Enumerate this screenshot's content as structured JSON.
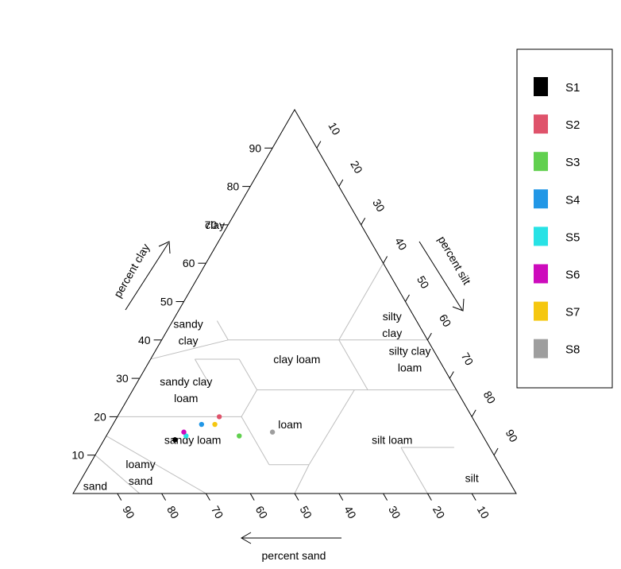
{
  "chart_data": {
    "type": "scatter",
    "subtype": "ternary soil texture triangle",
    "axes": {
      "clay": {
        "label": "percent clay",
        "ticks": [
          10,
          20,
          30,
          40,
          50,
          60,
          70,
          80,
          90
        ],
        "range": [
          0,
          100
        ]
      },
      "silt": {
        "label": "percent silt",
        "ticks": [
          10,
          20,
          30,
          40,
          50,
          60,
          70,
          80,
          90
        ],
        "range": [
          0,
          100
        ]
      },
      "sand": {
        "label": "percent sand",
        "ticks": [
          90,
          80,
          70,
          60,
          50,
          40,
          30,
          20,
          10
        ],
        "range": [
          0,
          100
        ]
      }
    },
    "regions": [
      {
        "name": "clay",
        "lines": [
          "clay"
        ],
        "label_at": {
          "sand": 33,
          "clay": 70
        }
      },
      {
        "name": "sandy-clay",
        "lines": [
          "sandy",
          "clay"
        ],
        "label_at": {
          "sand": 53,
          "clay": 42
        }
      },
      {
        "name": "silty-clay",
        "lines": [
          "silty",
          "clay"
        ],
        "label_at": {
          "sand": 6,
          "clay": 44
        }
      },
      {
        "name": "clay-loam",
        "lines": [
          "clay loam"
        ],
        "label_at": {
          "sand": 32,
          "clay": 35
        }
      },
      {
        "name": "sandy-clay-loam",
        "lines": [
          "sandy clay",
          "loam"
        ],
        "label_at": {
          "sand": 61,
          "clay": 27
        }
      },
      {
        "name": "silty-clay-loam",
        "lines": [
          "silty clay",
          "loam"
        ],
        "label_at": {
          "sand": 6.5,
          "clay": 35
        }
      },
      {
        "name": "loam",
        "lines": [
          "loam"
        ],
        "label_at": {
          "sand": 42,
          "clay": 18
        }
      },
      {
        "name": "silt-loam",
        "lines": [
          "silt loam"
        ],
        "label_at": {
          "sand": 21,
          "clay": 14
        }
      },
      {
        "name": "sandy-loam",
        "lines": [
          "sandy loam"
        ],
        "label_at": {
          "sand": 66,
          "clay": 14
        }
      },
      {
        "name": "loamy-sand",
        "lines": [
          "loamy",
          "sand"
        ],
        "label_at": {
          "sand": 82,
          "clay": 5.5
        }
      },
      {
        "name": "sand",
        "lines": [
          "sand"
        ],
        "label_at": {
          "sand": 94,
          "clay": 2
        }
      },
      {
        "name": "silt",
        "lines": [
          "silt"
        ],
        "label_at": {
          "sand": 8,
          "clay": 4
        }
      }
    ],
    "series": [
      {
        "name": "S1",
        "color": "#000000",
        "sand": 70,
        "silt": 16,
        "clay": 14
      },
      {
        "name": "S2",
        "color": "#DF536B",
        "sand": 57,
        "silt": 23,
        "clay": 20
      },
      {
        "name": "S3",
        "color": "#61D04F",
        "sand": 55,
        "silt": 30,
        "clay": 15
      },
      {
        "name": "S4",
        "color": "#2297E6",
        "sand": 62,
        "silt": 20,
        "clay": 18
      },
      {
        "name": "S5",
        "color": "#28E2E5",
        "sand": 67,
        "silt": 18,
        "clay": 15
      },
      {
        "name": "S6",
        "color": "#CD0BBC",
        "sand": 67,
        "silt": 17,
        "clay": 16
      },
      {
        "name": "S7",
        "color": "#F5C710",
        "sand": 59,
        "silt": 23,
        "clay": 18
      },
      {
        "name": "S8",
        "color": "#9E9E9E",
        "sand": 47,
        "silt": 37,
        "clay": 16
      }
    ],
    "legend": {
      "position": "top-right",
      "entries": [
        "S1",
        "S2",
        "S3",
        "S4",
        "S5",
        "S6",
        "S7",
        "S8"
      ]
    },
    "boundary_color": "#BEBEBE"
  }
}
